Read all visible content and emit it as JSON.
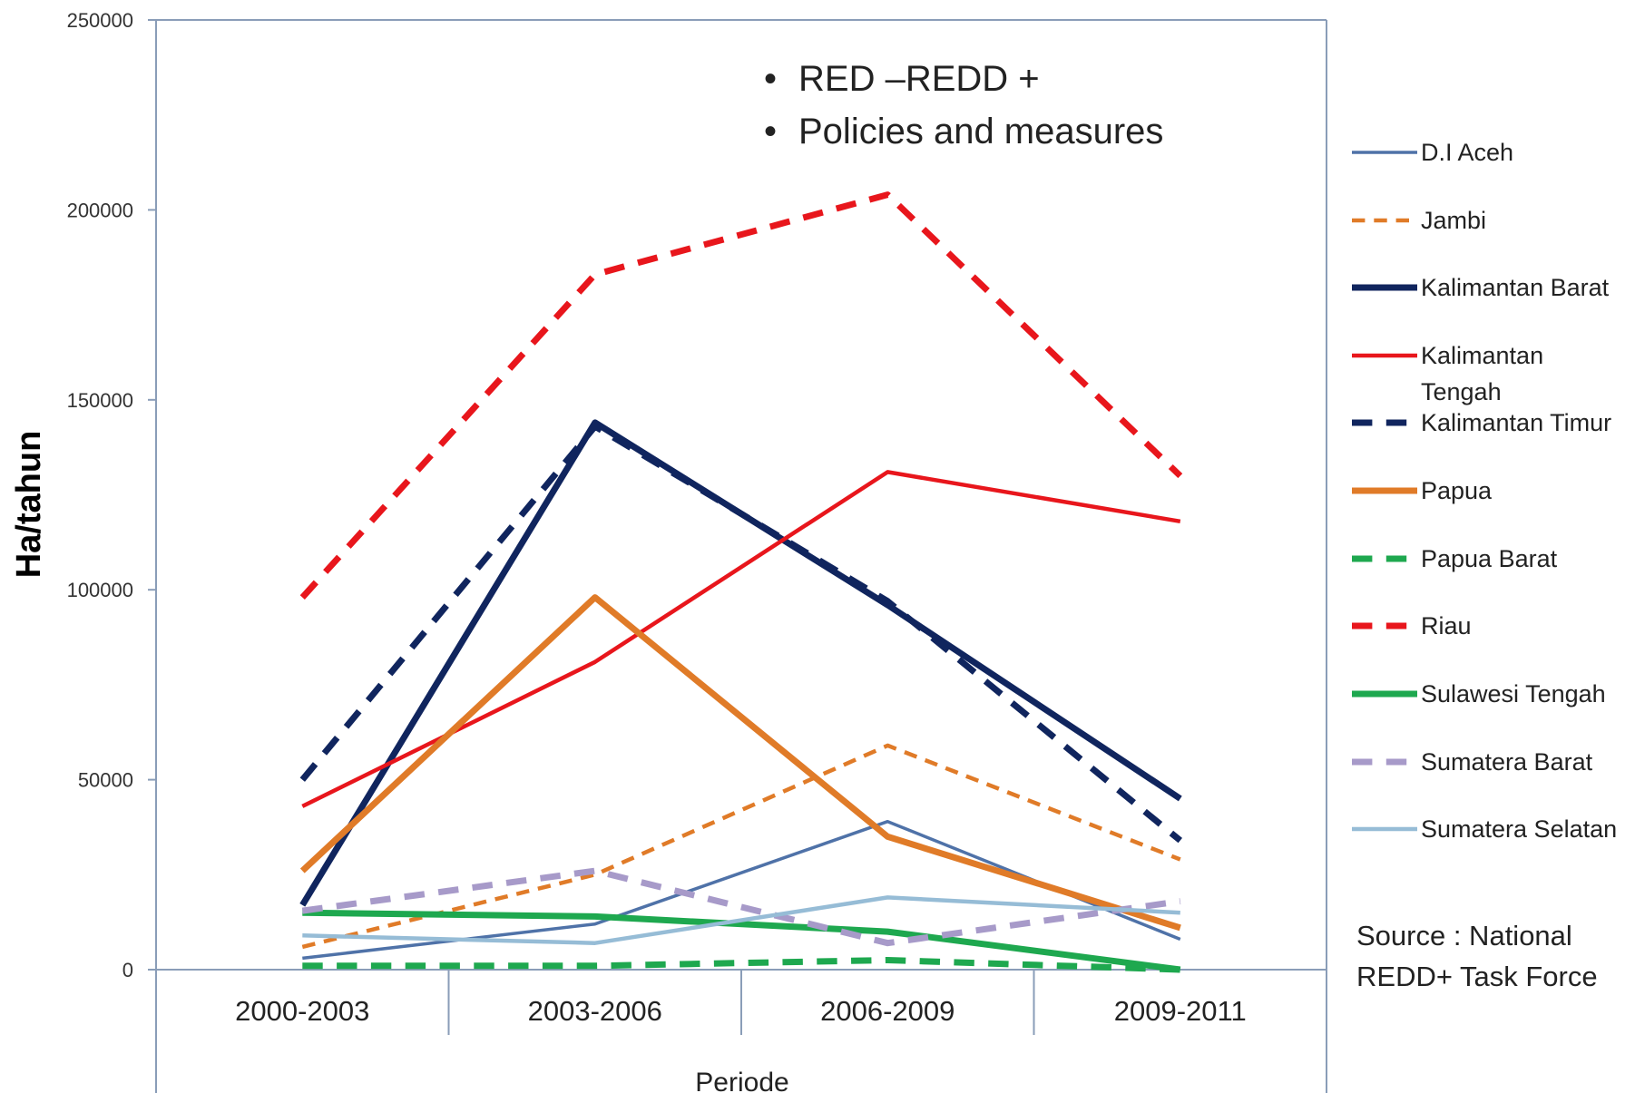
{
  "chart_data": {
    "type": "line",
    "categories": [
      "2000-2003",
      "2003-2006",
      "2006-2009",
      "2009-2011"
    ],
    "xlabel": "Periode",
    "ylabel": "Ha/tahun",
    "ylim": [
      0,
      250000
    ],
    "yticks": [
      0,
      50000,
      100000,
      150000,
      200000,
      250000
    ],
    "grid": false,
    "legend_position": "right",
    "series": [
      {
        "name": "D.I Aceh",
        "values": [
          3000,
          12000,
          39000,
          8000
        ],
        "color": "#4f72a8",
        "dash": "solid",
        "weight": "thin"
      },
      {
        "name": "Jambi",
        "values": [
          6000,
          25000,
          59000,
          29000
        ],
        "color": "#e07b28",
        "dash": "dashed",
        "weight": "medium"
      },
      {
        "name": "Kalimantan Barat",
        "values": [
          17000,
          144000,
          96000,
          45000
        ],
        "color": "#10255e",
        "dash": "solid",
        "weight": "thick"
      },
      {
        "name": "Kalimantan Tengah",
        "values": [
          43000,
          81000,
          131000,
          118000
        ],
        "color": "#e8161c",
        "dash": "solid",
        "weight": "medium"
      },
      {
        "name": "Kalimantan Timur",
        "values": [
          50000,
          143000,
          97000,
          34000
        ],
        "color": "#10255e",
        "dash": "dashed",
        "weight": "thick"
      },
      {
        "name": "Papua",
        "values": [
          26000,
          98000,
          35000,
          11000
        ],
        "color": "#e07b28",
        "dash": "solid",
        "weight": "thick"
      },
      {
        "name": "Papua Barat",
        "values": [
          1000,
          1000,
          2500,
          0
        ],
        "color": "#1ea84f",
        "dash": "dashed",
        "weight": "thick"
      },
      {
        "name": "Riau",
        "values": [
          98000,
          183000,
          204000,
          130000
        ],
        "color": "#e8161c",
        "dash": "dashed",
        "weight": "thick"
      },
      {
        "name": "Sulawesi Tengah",
        "values": [
          15000,
          14000,
          10000,
          0
        ],
        "color": "#1ea84f",
        "dash": "solid",
        "weight": "thick"
      },
      {
        "name": "Sumatera Barat",
        "values": [
          15500,
          26000,
          7000,
          18000
        ],
        "color": "#a79ac9",
        "dash": "dashed",
        "weight": "thick"
      },
      {
        "name": "Sumatera Selatan",
        "values": [
          9000,
          7000,
          19000,
          15000
        ],
        "color": "#96bcd6",
        "dash": "solid",
        "weight": "medium"
      }
    ],
    "notes": [
      "RED –REDD +",
      "Policies and measures"
    ],
    "source": [
      "Source  :  National",
      "REDD+ Task Force"
    ]
  }
}
